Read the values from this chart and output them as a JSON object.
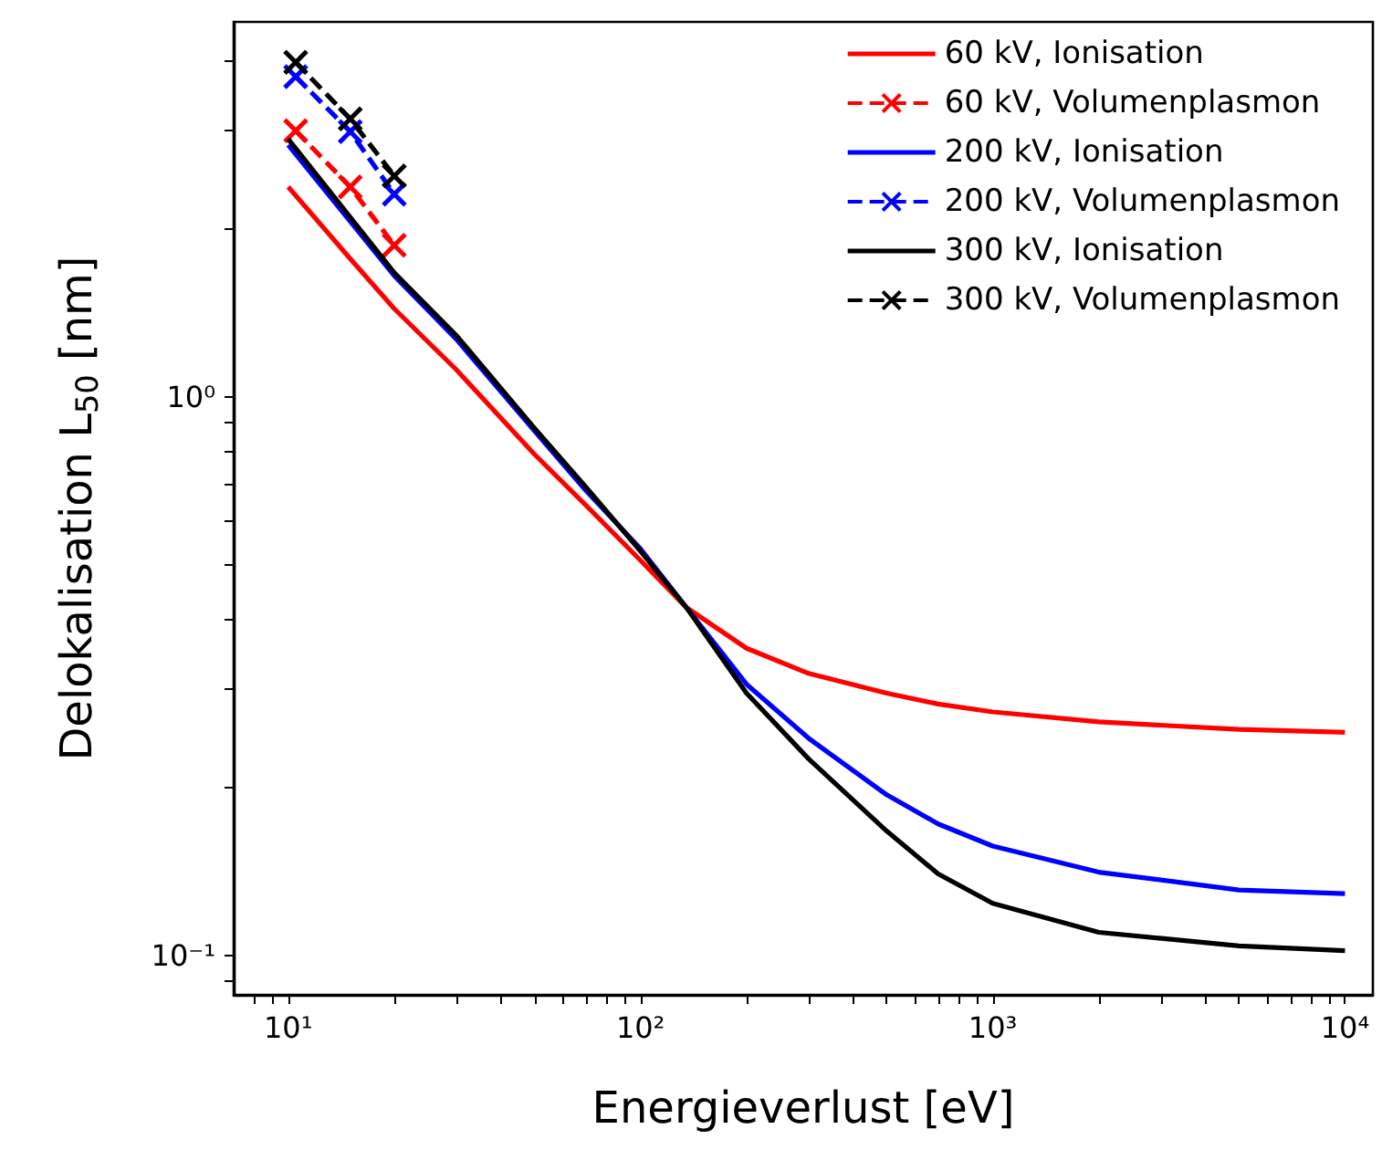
{
  "chart_data": {
    "type": "line",
    "xlabel": "Energieverlust [eV]",
    "ylabel": "Delokalisation L$_{50}$ [nm]",
    "log": "xy",
    "xlim": [
      7,
      12000
    ],
    "ylim": [
      0.085,
      4.7
    ],
    "xticks": [
      {
        "value": 8,
        "label": null
      },
      {
        "value": 9,
        "label": null
      },
      {
        "value": 10,
        "label": "10¹"
      },
      {
        "value": 20,
        "label": null
      },
      {
        "value": 30,
        "label": null
      },
      {
        "value": 40,
        "label": null
      },
      {
        "value": 50,
        "label": null
      },
      {
        "value": 60,
        "label": null
      },
      {
        "value": 70,
        "label": null
      },
      {
        "value": 80,
        "label": null
      },
      {
        "value": 90,
        "label": null
      },
      {
        "value": 100,
        "label": "10²"
      },
      {
        "value": 200,
        "label": null
      },
      {
        "value": 300,
        "label": null
      },
      {
        "value": 400,
        "label": null
      },
      {
        "value": 500,
        "label": null
      },
      {
        "value": 600,
        "label": null
      },
      {
        "value": 700,
        "label": null
      },
      {
        "value": 800,
        "label": null
      },
      {
        "value": 900,
        "label": null
      },
      {
        "value": 1000,
        "label": "10³"
      },
      {
        "value": 2000,
        "label": null
      },
      {
        "value": 3000,
        "label": null
      },
      {
        "value": 4000,
        "label": null
      },
      {
        "value": 5000,
        "label": null
      },
      {
        "value": 6000,
        "label": null
      },
      {
        "value": 7000,
        "label": null
      },
      {
        "value": 8000,
        "label": null
      },
      {
        "value": 9000,
        "label": null
      },
      {
        "value": 10000,
        "label": "10⁴"
      }
    ],
    "yticks": [
      {
        "value": 0.09,
        "label": null
      },
      {
        "value": 0.1,
        "label": "10⁻¹"
      },
      {
        "value": 0.2,
        "label": null
      },
      {
        "value": 0.3,
        "label": null
      },
      {
        "value": 0.4,
        "label": null
      },
      {
        "value": 0.5,
        "label": null
      },
      {
        "value": 0.6,
        "label": null
      },
      {
        "value": 0.7,
        "label": null
      },
      {
        "value": 0.8,
        "label": null
      },
      {
        "value": 0.9,
        "label": null
      },
      {
        "value": 1,
        "label": "10⁰"
      },
      {
        "value": 2,
        "label": null
      },
      {
        "value": 3,
        "label": null
      },
      {
        "value": 4,
        "label": null
      }
    ],
    "grid": false,
    "legend": "top right",
    "series": [
      {
        "name": "60 kV, Ionisation",
        "color": "#ff0000",
        "marker": "none",
        "line_style": "solid",
        "x": [
          10,
          15,
          20,
          30,
          50,
          70,
          100,
          135,
          200,
          300,
          500,
          700,
          1000,
          2000,
          5000,
          10000
        ],
        "values": [
          2.38,
          1.77,
          1.44,
          1.12,
          0.79,
          0.64,
          0.51,
          0.42,
          0.355,
          0.32,
          0.295,
          0.282,
          0.273,
          0.262,
          0.254,
          0.251
        ]
      },
      {
        "name": "60 kV, Volumenplasmon",
        "color": "#ff0000",
        "marker": "cross",
        "line_style": "dashed",
        "x": [
          10.5,
          15,
          20
        ],
        "values": [
          3.0,
          2.38,
          1.87
        ]
      },
      {
        "name": "200 kV, Ionisation",
        "color": "#0000ff",
        "marker": "none",
        "line_style": "solid",
        "x": [
          10,
          20,
          30,
          50,
          70,
          100,
          135,
          200,
          300,
          500,
          700,
          1000,
          2000,
          5000,
          10000
        ],
        "values": [
          2.83,
          1.65,
          1.27,
          0.87,
          0.68,
          0.535,
          0.42,
          0.306,
          0.245,
          0.194,
          0.172,
          0.157,
          0.141,
          0.131,
          0.129
        ]
      },
      {
        "name": "200 kV, Volumenplasmon",
        "color": "#0000ff",
        "marker": "cross",
        "line_style": "dashed",
        "x": [
          10.5,
          15,
          20
        ],
        "values": [
          3.75,
          2.99,
          2.31
        ]
      },
      {
        "name": "300 kV, Ionisation",
        "color": "#000000",
        "marker": "none",
        "line_style": "solid",
        "x": [
          10,
          20,
          30,
          50,
          70,
          100,
          135,
          200,
          300,
          500,
          700,
          1000,
          2000,
          5000,
          10000
        ],
        "values": [
          2.9,
          1.67,
          1.29,
          0.88,
          0.69,
          0.53,
          0.42,
          0.295,
          0.225,
          0.167,
          0.14,
          0.124,
          0.11,
          0.104,
          0.102
        ]
      },
      {
        "name": "300 kV, Volumenplasmon",
        "color": "#000000",
        "marker": "cross",
        "line_style": "dashed",
        "x": [
          10.5,
          15,
          20
        ],
        "values": [
          3.98,
          3.15,
          2.49
        ]
      }
    ]
  }
}
